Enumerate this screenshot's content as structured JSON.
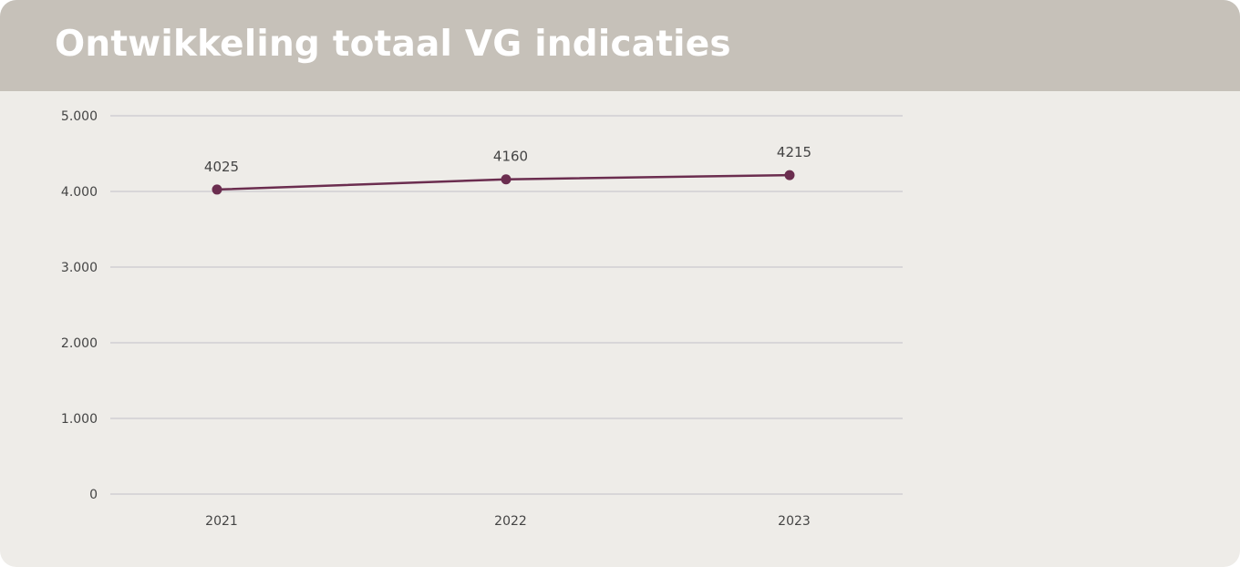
{
  "header": {
    "title": "Ontwikkeling totaal VG indicaties"
  },
  "chart_data": {
    "type": "line",
    "title": "Ontwikkeling totaal VG indicaties",
    "xlabel": "",
    "ylabel": "",
    "categories": [
      "2021",
      "2022",
      "2023"
    ],
    "series": [
      {
        "values": [
          4025,
          4160,
          4215
        ],
        "data_labels": [
          "4025",
          "4160",
          "4215"
        ],
        "color": "#6b2d4f"
      }
    ],
    "y_ticks": [
      0,
      1000,
      2000,
      3000,
      4000,
      5000
    ],
    "y_tick_labels": [
      "0",
      "1.000",
      "2.000",
      "3.000",
      "4.000",
      "5.000"
    ],
    "ylim": [
      0,
      5000
    ],
    "grid": true,
    "legend": "none"
  },
  "colors": {
    "header_background": "#c6c1b9",
    "card_background": "#eeece8",
    "series_line": "#6b2d4f",
    "grid": "#d8d6d8",
    "text": "#444444"
  }
}
